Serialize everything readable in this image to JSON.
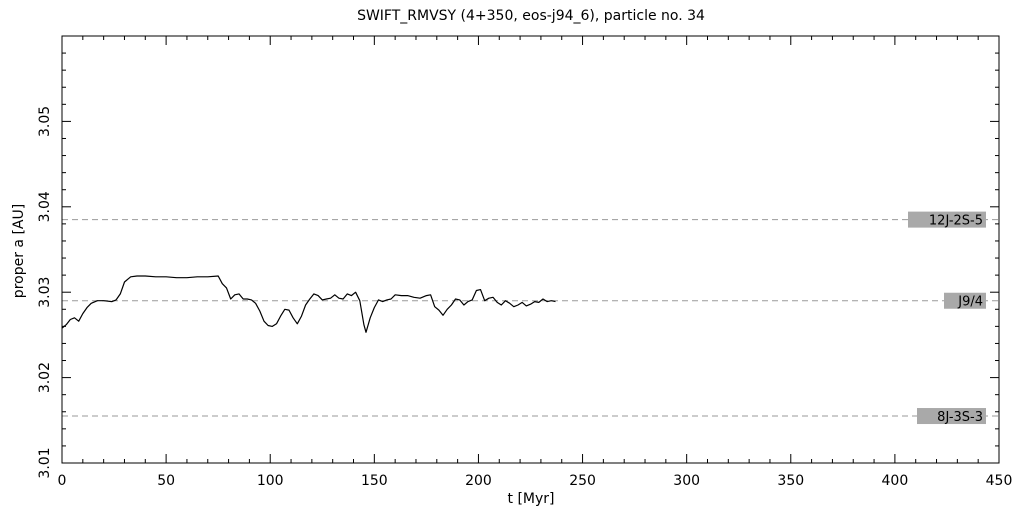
{
  "chart_data": {
    "type": "line",
    "title": "SWIFT_RMVSY (4+350, eos-j94_6), particle no. 34",
    "xlabel": "t [Myr]",
    "ylabel": "proper a [AU]",
    "xlim": [
      0,
      450
    ],
    "ylim": [
      3.01,
      3.06
    ],
    "x_ticks": [
      0,
      50,
      100,
      150,
      200,
      250,
      300,
      350,
      400,
      450
    ],
    "y_ticks": [
      3.01,
      3.02,
      3.03,
      3.04,
      3.05
    ],
    "x_tick_labels": [
      "0",
      "50",
      "100",
      "150",
      "200",
      "250",
      "300",
      "350",
      "400",
      "450"
    ],
    "y_tick_labels": [
      "3.01",
      "3.02",
      "3.03",
      "3.04",
      "3.05"
    ],
    "grid": false,
    "resonances": [
      {
        "label": "12J-2S-5",
        "a": 3.0385
      },
      {
        "label": "J9/4",
        "a": 3.029
      },
      {
        "label": "8J-3S-3",
        "a": 3.0155
      }
    ],
    "series": [
      {
        "x": [
          0,
          2,
          4,
          6,
          8,
          10,
          12,
          14,
          17,
          20,
          24,
          26,
          28,
          30,
          33,
          36,
          40,
          45,
          50,
          55,
          60,
          65,
          70,
          75,
          77,
          79,
          81,
          83,
          85,
          87,
          89,
          91,
          93,
          95,
          97,
          99,
          101,
          103,
          105,
          107,
          109,
          111,
          113,
          115,
          117,
          119,
          121,
          123,
          125,
          127,
          129,
          131,
          133,
          135,
          137,
          139,
          141,
          143,
          145,
          146,
          148,
          150,
          152,
          154,
          156,
          158,
          160,
          163,
          166,
          169,
          172,
          175,
          177,
          179,
          181,
          183,
          185,
          187,
          189,
          191,
          193,
          195,
          197,
          199,
          201,
          203,
          205,
          207,
          209,
          211,
          213,
          215,
          217,
          219,
          221,
          223,
          225,
          227,
          229,
          231,
          233,
          235,
          237
        ],
        "y": [
          3.0258,
          3.0262,
          3.0268,
          3.027,
          3.0266,
          3.0275,
          3.0282,
          3.0287,
          3.029,
          3.029,
          3.0289,
          3.0291,
          3.0298,
          3.0312,
          3.0318,
          3.0319,
          3.0319,
          3.0318,
          3.0318,
          3.0317,
          3.0317,
          3.0318,
          3.0318,
          3.0319,
          3.031,
          3.0305,
          3.0292,
          3.0297,
          3.0298,
          3.0292,
          3.0292,
          3.0291,
          3.0287,
          3.0278,
          3.0266,
          3.0261,
          3.026,
          3.0263,
          3.0272,
          3.028,
          3.0279,
          3.027,
          3.0263,
          3.0272,
          3.0285,
          3.0292,
          3.0298,
          3.0296,
          3.0291,
          3.0292,
          3.0293,
          3.0297,
          3.0293,
          3.0292,
          3.0298,
          3.0296,
          3.03,
          3.029,
          3.0262,
          3.0253,
          3.027,
          3.0282,
          3.0291,
          3.0289,
          3.0291,
          3.0292,
          3.0297,
          3.0296,
          3.0296,
          3.0294,
          3.0293,
          3.0296,
          3.0297,
          3.0283,
          3.0279,
          3.0273,
          3.028,
          3.0285,
          3.0292,
          3.0291,
          3.0285,
          3.0289,
          3.0291,
          3.0302,
          3.0303,
          3.029,
          3.0293,
          3.0294,
          3.0288,
          3.0285,
          3.029,
          3.0287,
          3.0283,
          3.0285,
          3.0288,
          3.0284,
          3.0286,
          3.0289,
          3.0288,
          3.0292,
          3.0289,
          3.029,
          3.0289
        ]
      }
    ]
  }
}
